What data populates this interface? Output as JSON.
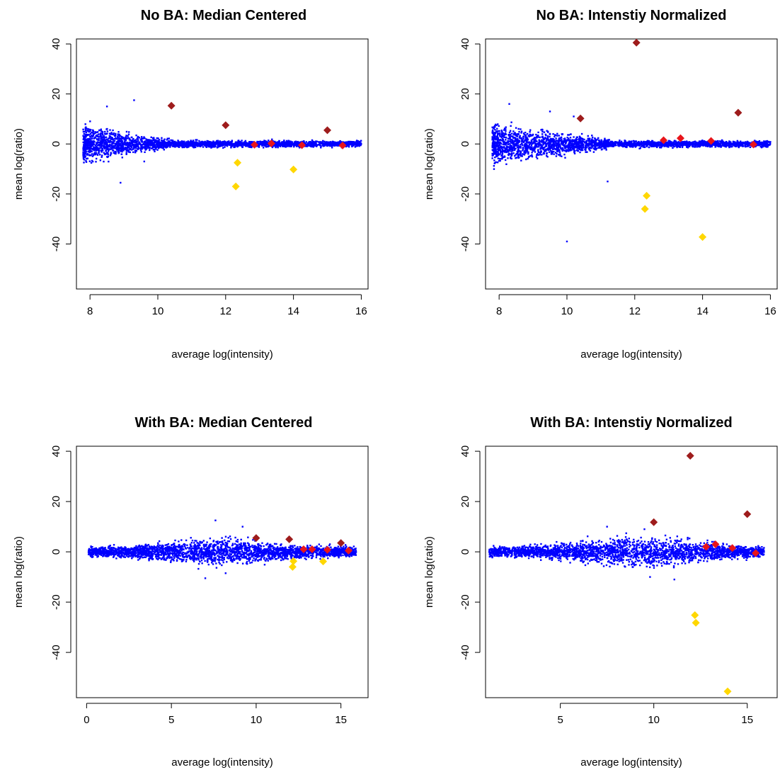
{
  "chart_data": [
    {
      "type": "scatter",
      "title": "No BA: Median Centered",
      "xlabel": "average log(intensity)",
      "ylabel": "mean log(ratio)",
      "xlim": [
        7.6,
        16.2
      ],
      "ylim": [
        -58,
        42
      ],
      "xticks": [
        8,
        10,
        12,
        14,
        16
      ],
      "yticks": [
        40,
        20,
        0,
        -20,
        -40
      ],
      "grid": false,
      "cloud": {
        "color": "#0000ff",
        "xrange": [
          7.8,
          16
        ],
        "spread": "wide at low intensity, narrowing toward high intensity",
        "max_dev": 6,
        "funnel_end": 10.5
      },
      "outliers": [
        [
          8.5,
          15
        ],
        [
          9.3,
          17.5
        ],
        [
          8.9,
          -15.5
        ],
        [
          9.6,
          -7
        ]
      ],
      "series": [
        {
          "color": "#9e1c1c",
          "points": [
            [
              10.4,
              15.3
            ],
            [
              12.0,
              7.5
            ],
            [
              15.0,
              5.5
            ]
          ]
        },
        {
          "color": "#e8151b",
          "points": [
            [
              12.85,
              -0.3
            ],
            [
              13.35,
              0.2
            ],
            [
              14.25,
              -0.5
            ],
            [
              15.45,
              -0.6
            ]
          ]
        },
        {
          "color": "#ffd700",
          "points": [
            [
              12.35,
              -7.5
            ],
            [
              12.3,
              -17
            ],
            [
              14.0,
              -10.2
            ]
          ]
        }
      ]
    },
    {
      "type": "scatter",
      "title": "No BA: Intenstiy Normalized",
      "xlabel": "average log(intensity)",
      "ylabel": "mean log(ratio)",
      "xlim": [
        7.6,
        16.2
      ],
      "ylim": [
        -58,
        42
      ],
      "xticks": [
        8,
        10,
        12,
        14,
        16
      ],
      "yticks": [
        40,
        20,
        0,
        -20,
        -40
      ],
      "grid": false,
      "cloud": {
        "color": "#0000ff",
        "xrange": [
          7.8,
          16
        ],
        "spread": "wide at low intensity, narrowing toward high intensity",
        "max_dev": 7,
        "funnel_end": 11.5
      },
      "outliers": [
        [
          8.3,
          16
        ],
        [
          9.5,
          13
        ],
        [
          10.0,
          -39
        ],
        [
          11.2,
          -15
        ],
        [
          10.2,
          11
        ]
      ],
      "series": [
        {
          "color": "#9e1c1c",
          "points": [
            [
              12.05,
              40.5
            ],
            [
              10.4,
              10.2
            ],
            [
              15.05,
              12.5
            ]
          ]
        },
        {
          "color": "#e8151b",
          "points": [
            [
              12.85,
              1.5
            ],
            [
              13.35,
              2.3
            ],
            [
              14.25,
              1.2
            ],
            [
              15.5,
              -0.2
            ]
          ]
        },
        {
          "color": "#ffd700",
          "points": [
            [
              12.35,
              -20.7
            ],
            [
              12.3,
              -26
            ],
            [
              14.0,
              -37.2
            ]
          ]
        }
      ]
    },
    {
      "type": "scatter",
      "title": "With BA: Median Centered",
      "xlabel": "average log(intensity)",
      "ylabel": "mean log(ratio)",
      "xlim": [
        -0.6,
        16.6
      ],
      "ylim": [
        -58,
        42
      ],
      "xticks": [
        0,
        5,
        10,
        15
      ],
      "yticks": [
        40,
        20,
        0,
        -20,
        -40
      ],
      "grid": false,
      "cloud": {
        "color": "#0000ff",
        "xrange": [
          0.1,
          15.9
        ],
        "spread": "fairly even, wider around 6-10",
        "max_dev": 4,
        "bulge_center": 8
      },
      "outliers": [
        [
          7.6,
          12.5
        ],
        [
          9.2,
          10
        ],
        [
          7.0,
          -10.5
        ],
        [
          8.2,
          -8.5
        ]
      ],
      "series": [
        {
          "color": "#9e1c1c",
          "points": [
            [
              10.0,
              5.5
            ],
            [
              11.95,
              5.0
            ],
            [
              15.0,
              3.5
            ]
          ]
        },
        {
          "color": "#e8151b",
          "points": [
            [
              12.8,
              1.0
            ],
            [
              13.3,
              1.0
            ],
            [
              14.2,
              0.8
            ],
            [
              15.45,
              0.5
            ]
          ]
        },
        {
          "color": "#ffd700",
          "points": [
            [
              12.2,
              -3.7
            ],
            [
              12.15,
              -6.0
            ],
            [
              13.95,
              -3.8
            ]
          ]
        }
      ]
    },
    {
      "type": "scatter",
      "title": "With BA: Intenstiy Normalized",
      "xlabel": "average log(intensity)",
      "ylabel": "mean log(ratio)",
      "xlim": [
        1.0,
        16.6
      ],
      "ylim": [
        -58,
        42
      ],
      "xticks": [
        5,
        10,
        15
      ],
      "yticks": [
        40,
        20,
        0,
        -20,
        -40
      ],
      "grid": false,
      "cloud": {
        "color": "#0000ff",
        "xrange": [
          1.2,
          15.9
        ],
        "spread": "fairly even, wider around 6-10",
        "max_dev": 5,
        "bulge_center": 9
      },
      "outliers": [
        [
          7.5,
          10
        ],
        [
          9.5,
          9
        ],
        [
          11.1,
          -11
        ],
        [
          9.8,
          -10
        ]
      ],
      "series": [
        {
          "color": "#9e1c1c",
          "points": [
            [
              11.95,
              38.2
            ],
            [
              10.0,
              11.8
            ],
            [
              15.0,
              15.0
            ]
          ]
        },
        {
          "color": "#e8151b",
          "points": [
            [
              12.8,
              2.0
            ],
            [
              13.3,
              3.0
            ],
            [
              14.2,
              1.5
            ],
            [
              15.45,
              -0.5
            ]
          ]
        },
        {
          "color": "#ffd700",
          "points": [
            [
              12.2,
              -25.2
            ],
            [
              12.25,
              -28.2
            ],
            [
              13.95,
              -55.5
            ]
          ]
        }
      ]
    }
  ]
}
